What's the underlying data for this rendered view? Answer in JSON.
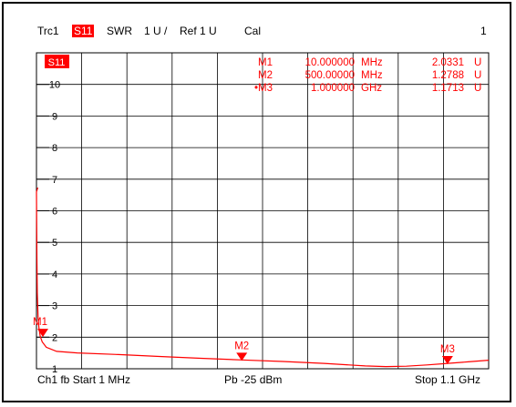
{
  "header": {
    "trace": "Trc1",
    "param": "S11",
    "format": "SWR",
    "scale": "1 U /",
    "ref": "Ref 1 U",
    "cal": "Cal",
    "channel_index": "1"
  },
  "badge": "S11",
  "footer": {
    "left": "Ch1  fb  Start  1 MHz",
    "mid": "Pb  -25 dBm",
    "right": "Stop  1.1 GHz"
  },
  "markers": [
    {
      "name": "M1",
      "freq": "10.000000",
      "unit": "MHz",
      "value": "2.0331",
      "vunit": "U",
      "active": false
    },
    {
      "name": "M2",
      "freq": "500.00000",
      "unit": "MHz",
      "value": "1.2788",
      "vunit": "U",
      "active": false
    },
    {
      "name": "M3",
      "freq": "1.000000",
      "unit": "GHz",
      "value": "1.1713",
      "vunit": "U",
      "active": true
    }
  ],
  "chart_data": {
    "type": "line",
    "x_unit": "MHz",
    "y_unit": "U",
    "xlim": [
      1,
      1100
    ],
    "ylim": [
      1,
      11
    ],
    "ytick_labels": [
      "1",
      "2",
      "3",
      "4",
      "5",
      "6",
      "7",
      "8",
      "9",
      "10"
    ],
    "grid": true,
    "series_color": "#ff0000",
    "x": [
      1,
      2,
      3,
      5,
      7,
      10,
      15,
      25,
      50,
      100,
      200,
      300,
      400,
      500,
      600,
      700,
      800,
      850,
      900,
      950,
      1000,
      1050,
      1100
    ],
    "y": [
      6.6,
      4.5,
      3.4,
      2.6,
      2.3,
      2.0331,
      1.85,
      1.68,
      1.55,
      1.5,
      1.45,
      1.39,
      1.33,
      1.2788,
      1.23,
      1.17,
      1.09,
      1.07,
      1.08,
      1.12,
      1.1713,
      1.22,
      1.27
    ],
    "marker_points": [
      {
        "label": "M1",
        "x": 10,
        "y": 2.0331
      },
      {
        "label": "M2",
        "x": 500,
        "y": 1.2788
      },
      {
        "label": "M3",
        "x": 1000,
        "y": 1.1713
      }
    ]
  }
}
